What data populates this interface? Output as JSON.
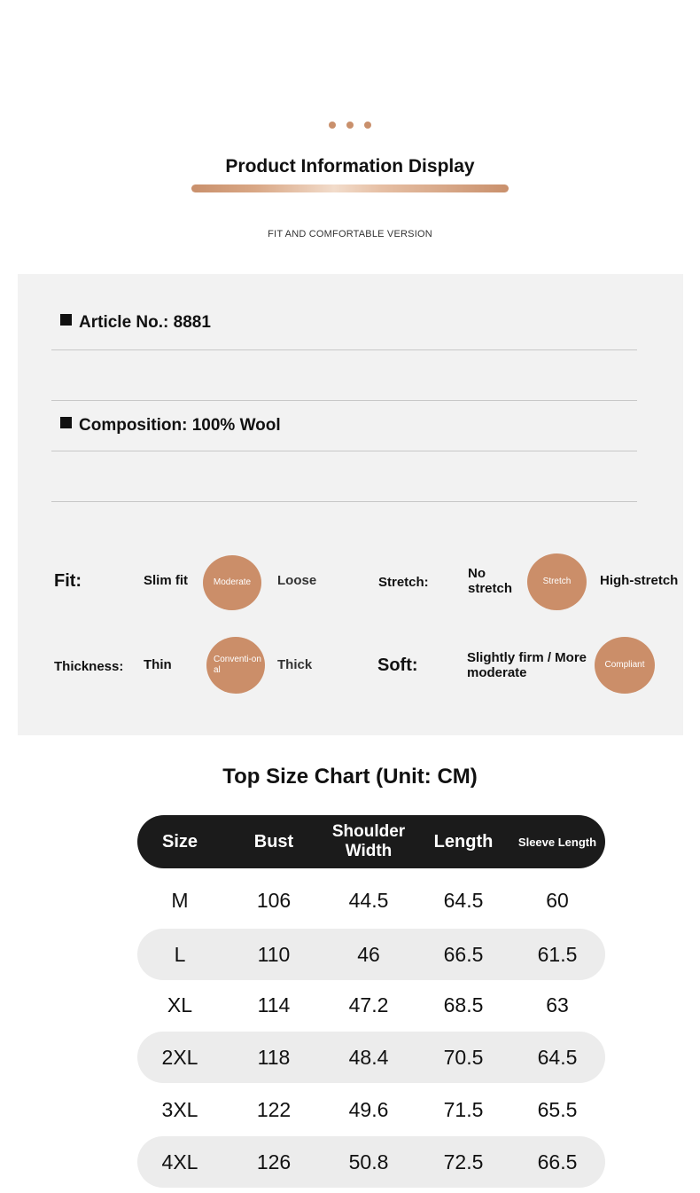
{
  "header": {
    "title": "Product Information Display",
    "subtitle": "FIT AND COMFORTABLE VERSION"
  },
  "info": {
    "article": "Article No.: 8881",
    "composition": "Composition: 100% Wool"
  },
  "attributes": {
    "fit": {
      "label": "Fit:",
      "left": "Slim fit",
      "selected": "Moderate",
      "right": "Loose"
    },
    "stretch": {
      "label": "Stretch:",
      "left": "No stretch",
      "selected": "Stretch",
      "right": "High-stretch"
    },
    "thickness": {
      "label": "Thickness:",
      "left": "Thin",
      "selected": "Conventi-onal",
      "right": "Thick"
    },
    "soft": {
      "label": "Soft:",
      "left": "Slightly firm / More moderate",
      "selected": "Compliant"
    }
  },
  "size_chart": {
    "title": "Top Size Chart (Unit: CM)",
    "columns": [
      "Size",
      "Bust",
      "Shoulder Width",
      "Length",
      "Sleeve Length"
    ],
    "rows": [
      [
        "M",
        "106",
        "44.5",
        "64.5",
        "60"
      ],
      [
        "L",
        "110",
        "46",
        "66.5",
        "61.5"
      ],
      [
        "XL",
        "114",
        "47.2",
        "68.5",
        "63"
      ],
      [
        "2XL",
        "118",
        "48.4",
        "70.5",
        "64.5"
      ],
      [
        "3XL",
        "122",
        "49.6",
        "71.5",
        "65.5"
      ],
      [
        "4XL",
        "126",
        "50.8",
        "72.5",
        "66.5"
      ]
    ]
  },
  "colors": {
    "accent": "#cb8e69",
    "header_bg": "#1b1b1b",
    "panel_bg": "#f2f2f2",
    "row_shade": "#ececec"
  }
}
